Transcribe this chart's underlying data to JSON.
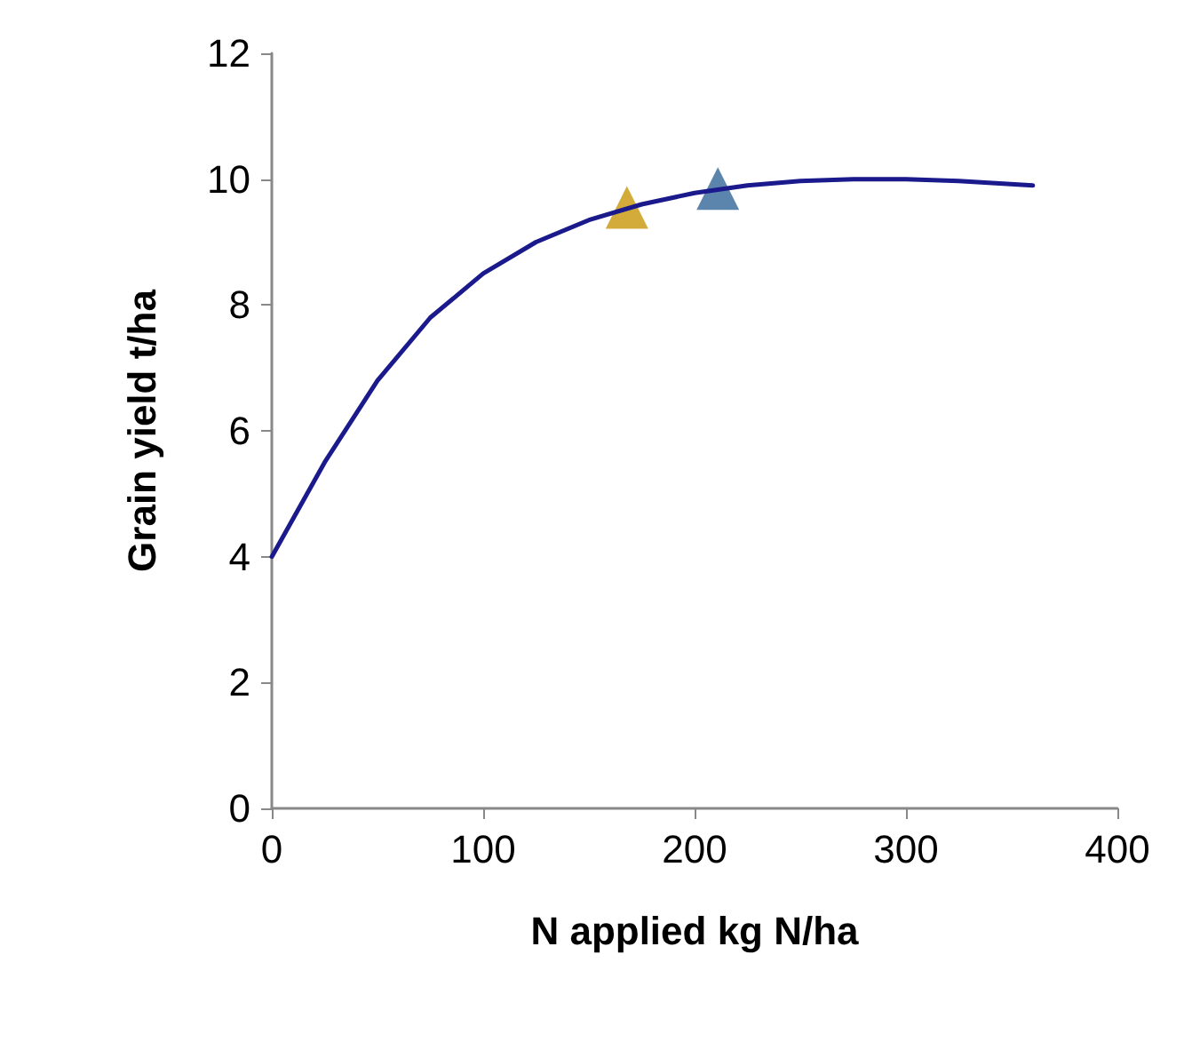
{
  "chart_data": {
    "type": "line",
    "xlabel": "N applied kg N/ha",
    "ylabel": "Grain yield t/ha",
    "xlim": [
      0,
      400
    ],
    "xticks": [
      0,
      100,
      200,
      300,
      400
    ],
    "ylim": [
      0,
      12
    ],
    "yticks": [
      0,
      2,
      4,
      6,
      8,
      10,
      12
    ],
    "grid": false,
    "series": [
      {
        "color": "#1a1a8c",
        "marker": "none",
        "x": [
          0,
          25,
          50,
          75,
          100,
          125,
          150,
          175,
          200,
          225,
          250,
          275,
          300,
          325,
          360
        ],
        "values": [
          4,
          5.5,
          6.8,
          7.8,
          8.5,
          9.0,
          9.35,
          9.6,
          9.78,
          9.9,
          9.97,
          10.0,
          10.0,
          9.97,
          9.9
        ]
      },
      {
        "type": "scatter",
        "color": "#c8960a",
        "marker": "triangle",
        "x": [
          168
        ],
        "values": [
          9.55
        ]
      },
      {
        "type": "scatter",
        "color": "#336699",
        "marker": "triangle",
        "x": [
          211
        ],
        "values": [
          9.85
        ]
      }
    ]
  }
}
